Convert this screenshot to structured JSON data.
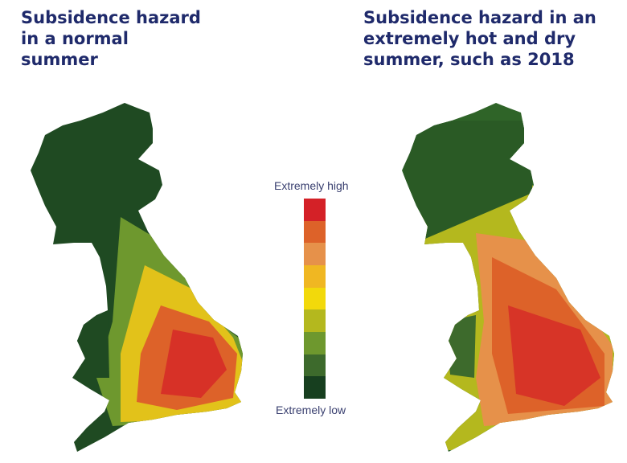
{
  "titles": {
    "left": "Subsidence hazard in a normal summer",
    "right": "Subsidence hazard in an extremely hot and dry summer, such as 2018"
  },
  "legend": {
    "high_label": "Extremely high",
    "low_label": "Extremely low",
    "colors_high_to_low": [
      "#d42127",
      "#dd6229",
      "#e6914a",
      "#f0b722",
      "#f2d90b",
      "#b4b81e",
      "#6e982e",
      "#3d6a2c",
      "#173f1f"
    ]
  },
  "maps": [
    {
      "name": "normal-summer",
      "base": "#1f4a22",
      "overlays": [
        "#6e982e",
        "#e2c21a",
        "#dd6229",
        "#d42127"
      ]
    },
    {
      "name": "hot-dry-summer",
      "base": "#2f6428",
      "overlays": [
        "#b4b81e",
        "#e6914a",
        "#dd6229",
        "#d42127"
      ]
    }
  ]
}
